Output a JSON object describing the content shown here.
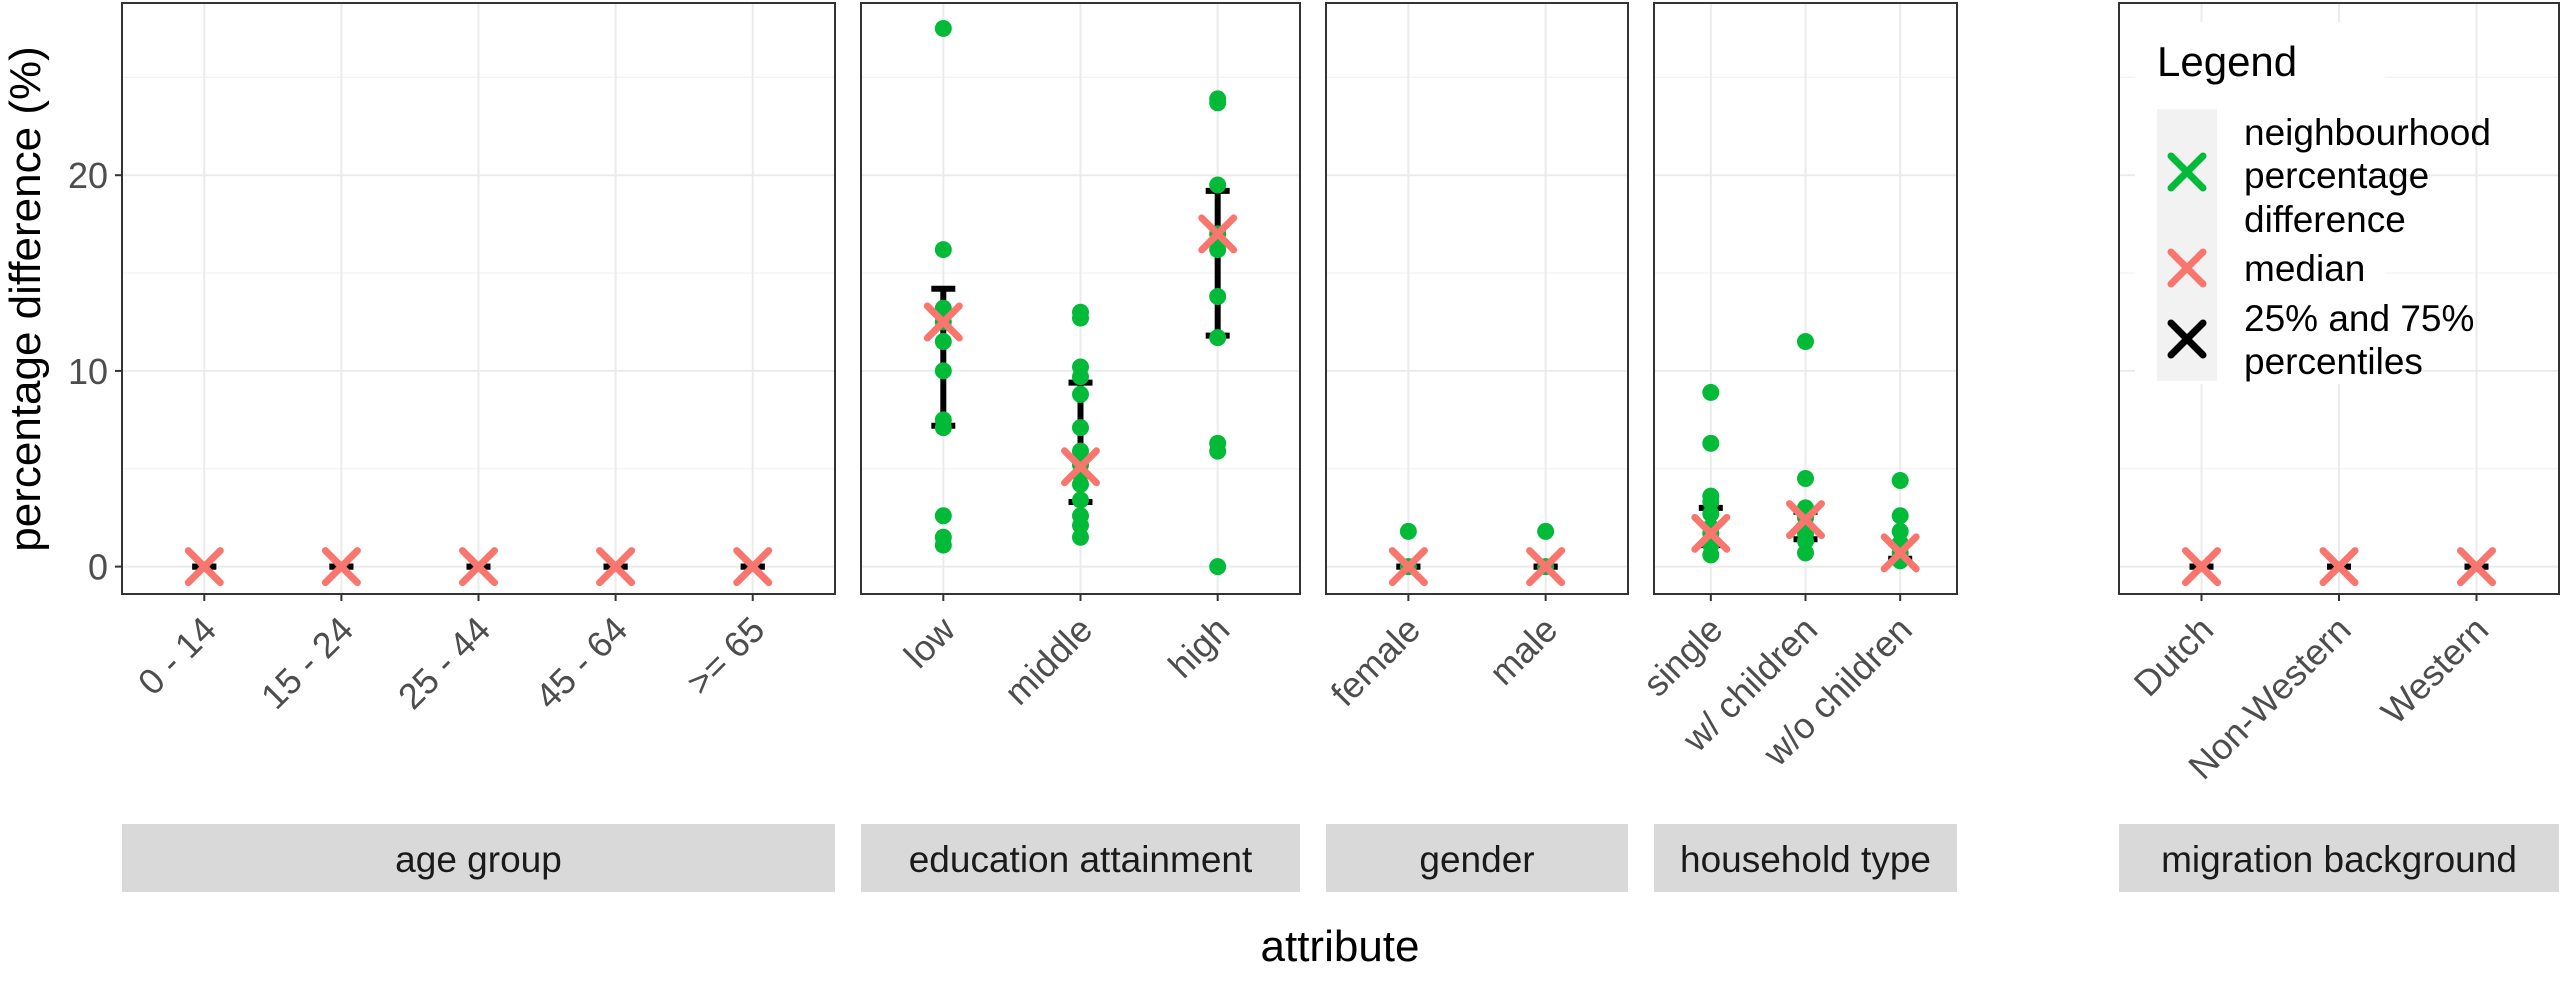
{
  "chart_data": {
    "type": "scatter",
    "xlabel": "attribute",
    "ylabel": "percentage difference (%)",
    "ylim": [
      -1.4,
      28.8
    ],
    "yticks": [
      0,
      10,
      20
    ],
    "grid": true,
    "legend_position": "top-right",
    "legend": {
      "title": "Legend",
      "entries": [
        {
          "label_lines": [
            "neighbourhood",
            "percentage",
            "difference"
          ],
          "color": "#00ba38"
        },
        {
          "label_lines": [
            "median"
          ],
          "color": "#f8766d"
        },
        {
          "label_lines": [
            "25% and 75%",
            "percentiles"
          ],
          "color": "#000000"
        }
      ]
    },
    "colors": {
      "points": "#00ba38",
      "median": "#f8766d",
      "percentiles": "#000000"
    },
    "facets": [
      {
        "label": "age group",
        "categories": [
          {
            "name": "0 - 14",
            "points": [],
            "median": 0,
            "q25": 0,
            "q75": 0
          },
          {
            "name": "15 - 24",
            "points": [],
            "median": 0,
            "q25": 0,
            "q75": 0
          },
          {
            "name": "25 - 44",
            "points": [],
            "median": 0,
            "q25": 0,
            "q75": 0
          },
          {
            "name": "45 - 64",
            "points": [],
            "median": 0,
            "q25": 0,
            "q75": 0
          },
          {
            "name": ">= 65",
            "points": [],
            "median": 0,
            "q25": 0,
            "q75": 0
          }
        ]
      },
      {
        "label": "education attainment",
        "categories": [
          {
            "name": "low",
            "points": [
              27.5,
              16.2,
              13.2,
              12.5,
              11.5,
              10.0,
              7.5,
              7.1,
              2.6,
              1.5,
              1.1
            ],
            "median": 12.5,
            "q25": 7.2,
            "q75": 14.2
          },
          {
            "name": "middle",
            "points": [
              13.0,
              12.7,
              10.2,
              9.7,
              8.8,
              7.1,
              5.9,
              5.2,
              4.7,
              4.2,
              3.4,
              2.6,
              2.1,
              1.5
            ],
            "median": 5.1,
            "q25": 3.3,
            "q75": 9.4
          },
          {
            "name": "high",
            "points": [
              23.9,
              23.7,
              19.5,
              17.0,
              16.2,
              13.8,
              11.7,
              6.3,
              5.9,
              0.0
            ],
            "median": 17.0,
            "q25": 11.8,
            "q75": 19.2
          }
        ]
      },
      {
        "label": "gender",
        "categories": [
          {
            "name": "female",
            "points": [
              1.8,
              0.0
            ],
            "median": 0,
            "q25": 0,
            "q75": 0
          },
          {
            "name": "male",
            "points": [
              1.8,
              0.0
            ],
            "median": 0,
            "q25": 0,
            "q75": 0
          }
        ]
      },
      {
        "label": "household type",
        "categories": [
          {
            "name": "single",
            "points": [
              8.9,
              6.3,
              3.6,
              3.3,
              2.7,
              2.0,
              1.7,
              1.4,
              1.1,
              0.6
            ],
            "median": 1.7,
            "q25": 1.1,
            "q75": 3.0
          },
          {
            "name": "w/ children",
            "points": [
              11.5,
              4.5,
              3.0,
              2.5,
              2.1,
              1.7,
              1.3,
              0.7
            ],
            "median": 2.4,
            "q25": 1.4,
            "q75": 2.8
          },
          {
            "name": "w/o children",
            "points": [
              4.4,
              2.6,
              1.8,
              1.2,
              0.7,
              0.3
            ],
            "median": 0.7,
            "q25": 0.4,
            "q75": 1.2
          }
        ]
      },
      {
        "label": "migration background",
        "categories": [
          {
            "name": "Dutch",
            "points": [],
            "median": 0,
            "q25": 0,
            "q75": 0
          },
          {
            "name": "Non-Western",
            "points": [],
            "median": 0,
            "q25": 0,
            "q75": 0
          },
          {
            "name": "Western",
            "points": [],
            "median": 0,
            "q25": 0,
            "q75": 0
          }
        ]
      }
    ]
  }
}
